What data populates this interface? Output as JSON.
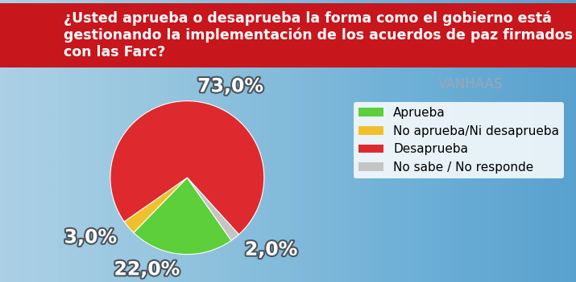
{
  "chart_data": {
    "type": "pie",
    "title": "¿Usted aprueba o desaprueba la forma como el gobierno está gestionando la implementación de los acuerdos de paz firmados con las Farc?",
    "categories": [
      "Aprueba",
      "No aprueba/Ni desaprueba",
      "Desaprueba",
      "No sabe / No responde"
    ],
    "values": [
      22.0,
      3.0,
      73.0,
      2.0
    ],
    "value_labels": [
      "22,0%",
      "3,0%",
      "73,0%",
      "2,0%"
    ],
    "colors": [
      "#5ccf3a",
      "#f0c02c",
      "#de2a2e",
      "#c4c4c4"
    ],
    "data_labels": true,
    "legend": "upper right",
    "annotations": [
      "VANHAAS"
    ]
  }
}
